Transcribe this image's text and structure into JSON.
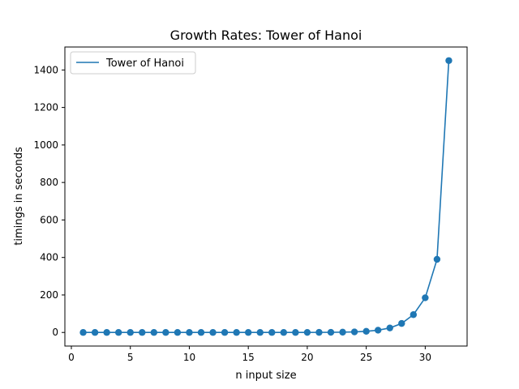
{
  "chart_data": {
    "type": "line",
    "title": "Growth Rates: Tower of Hanoi",
    "xlabel": "n input size",
    "ylabel": "timings in seconds",
    "xlim": [
      -0.55,
      33.55
    ],
    "ylim": [
      -72.5,
      1522.5
    ],
    "xticks": [
      0,
      5,
      10,
      15,
      20,
      25,
      30
    ],
    "yticks": [
      0,
      200,
      400,
      600,
      800,
      1000,
      1200,
      1400
    ],
    "grid": false,
    "legend_position": "top-left",
    "series": [
      {
        "name": "Tower of Hanoi",
        "color": "#1f77b4",
        "marker": "circle",
        "x": [
          1,
          2,
          3,
          4,
          5,
          6,
          7,
          8,
          9,
          10,
          11,
          12,
          13,
          14,
          15,
          16,
          17,
          18,
          19,
          20,
          21,
          22,
          23,
          24,
          25,
          26,
          27,
          28,
          29,
          30,
          31,
          32
        ],
        "y": [
          0,
          0,
          0,
          0,
          0,
          0,
          0,
          0,
          0,
          0,
          0,
          0,
          0,
          0,
          0,
          0,
          0,
          0,
          0,
          0.2,
          0.4,
          0.8,
          1.5,
          3,
          6,
          12,
          24,
          48,
          95,
          185,
          390,
          1450
        ]
      }
    ]
  }
}
